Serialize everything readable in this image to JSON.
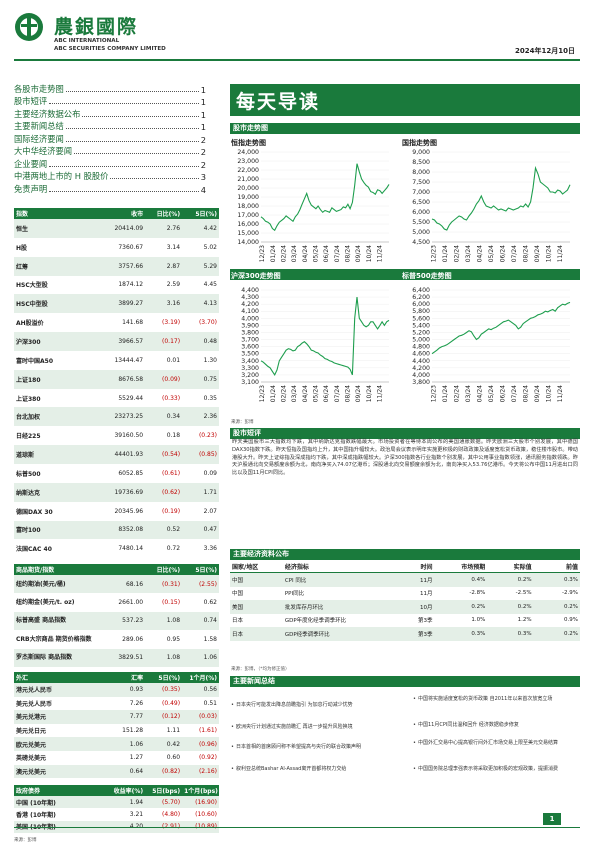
{
  "header": {
    "brand_cn": "農銀國際",
    "brand_en1": "ABC INTERNATIONAL",
    "brand_en2": "ABC SECURITIES COMPANY LIMITED",
    "date": "2024年12月10日"
  },
  "toc": [
    {
      "label": "各股市走势图",
      "page": "1"
    },
    {
      "label": "股市短评",
      "page": "1"
    },
    {
      "label": "主要经济数据公布",
      "page": "1"
    },
    {
      "label": "主要新闻总结",
      "page": "1"
    },
    {
      "label": "国际经济要闻",
      "page": "2"
    },
    {
      "label": "大中华经济要闻",
      "page": "2"
    },
    {
      "label": "企业要闻",
      "page": "2"
    },
    {
      "label": "中港两地上市的 H 股股价",
      "page": "3"
    },
    {
      "label": "免责声明",
      "page": "4"
    }
  ],
  "index_table": {
    "headers": [
      "指数",
      "收市",
      "日比(%)",
      "5日(%)"
    ],
    "rows": [
      [
        "恒生",
        "20414.09",
        "2.76",
        "4.42"
      ],
      [
        "H股",
        "7360.67",
        "3.14",
        "5.02"
      ],
      [
        "红筹",
        "3757.66",
        "2.87",
        "5.29"
      ],
      [
        "HSC大型股",
        "1874.12",
        "2.59",
        "4.45"
      ],
      [
        "HSC中型股",
        "3899.27",
        "3.16",
        "4.13"
      ],
      [
        "AH股溢价",
        "141.68",
        "(3.19)",
        "(3.70)"
      ],
      [
        "沪深300",
        "3966.57",
        "(0.17)",
        "0.48"
      ],
      [
        "富时中国A50",
        "13444.47",
        "0.01",
        "1.30"
      ],
      [
        "上证180",
        "8676.58",
        "(0.09)",
        "0.75"
      ],
      [
        "上证380",
        "5529.44",
        "(0.33)",
        "0.35"
      ],
      [
        "台北加权",
        "23273.25",
        "0.34",
        "2.36"
      ],
      [
        "日经225",
        "39160.50",
        "0.18",
        "(0.23)"
      ],
      [
        "道琼斯",
        "44401.93",
        "(0.54)",
        "(0.85)"
      ],
      [
        "标普500",
        "6052.85",
        "(0.61)",
        "0.09"
      ],
      [
        "纳斯达克",
        "19736.69",
        "(0.62)",
        "1.71"
      ],
      [
        "德国DAX 30",
        "20345.96",
        "(0.19)",
        "2.07"
      ],
      [
        "富时100",
        "8352.08",
        "0.52",
        "0.47"
      ],
      [
        "法国CAC 40",
        "7480.14",
        "0.72",
        "3.36"
      ]
    ]
  },
  "commodity_table": {
    "headers": [
      "商品期货/指数",
      "",
      "日比(%)",
      "5日(%)"
    ],
    "rows": [
      [
        "纽约期油(美元/桶)",
        "68.16",
        "(0.31)",
        "(2.55)"
      ],
      [
        "纽约期金(美元/t. oz)",
        "2661.00",
        "(0.15)",
        "0.62"
      ],
      [
        "标普高盛 商品指数",
        "537.23",
        "1.08",
        "0.74"
      ],
      [
        "CRB大宗商品 期货价格指数",
        "289.06",
        "0.95",
        "1.58"
      ],
      [
        "罗杰斯国际 商品指数",
        "3829.51",
        "1.08",
        "1.06"
      ]
    ]
  },
  "fx_table": {
    "headers": [
      "外汇",
      "汇率",
      "5日(%)",
      "1个月(%)"
    ],
    "rows": [
      [
        "港元兑人民币",
        "0.93",
        "(0.35)",
        "0.56"
      ],
      [
        "美元兑人民币",
        "7.26",
        "(0.49)",
        "0.51"
      ],
      [
        "美元兑港元",
        "7.77",
        "(0.12)",
        "(0.03)"
      ],
      [
        "美元兑日元",
        "151.28",
        "1.11",
        "(1.61)"
      ],
      [
        "欧元兑美元",
        "1.06",
        "0.42",
        "(0.96)"
      ],
      [
        "英磅兑美元",
        "1.27",
        "0.60",
        "(0.92)"
      ],
      [
        "澳元兑美元",
        "0.64",
        "(0.82)",
        "(2.16)"
      ]
    ]
  },
  "bond_table": {
    "headers": [
      "政府债券",
      "收益率(%)",
      "5日(bps)",
      "1个月(bps)"
    ],
    "rows": [
      [
        "中国 (10年期)",
        "1.94",
        "(5.70)",
        "(16.90)"
      ],
      [
        "香港 (10年期)",
        "3.21",
        "(4.80)",
        "(10.60)"
      ],
      [
        "美国 (10年期)",
        "4.20",
        "(2.91)",
        "(10.89)"
      ]
    ]
  },
  "source_left": "来源：彭博",
  "right": {
    "title": "每天导读",
    "charts_section": "股市走势图",
    "charts_source": "来源：彭博",
    "comment_section": "股市短评",
    "comment": "昨天美国股市三大指数均下跌，其中纳斯达克指数跌幅最大。市场投资者在等待本周公布的美国通胀数据。昨天欧洲三大股市个别发展，其中德国DAX30指数下跌。昨天恒指及国指均上升，其中国指升幅较大。政治局会议表示明年实施更积极的财政政策及适度宽松货币政策，稳住楼市股市。带动港股大升。昨天上证综指及深成指均下跌，其中深成指跌幅较大。沪深300指数各行业指数个别发展，其中公用事业指数领涨，通讯服务指数领跌。昨天沪股通北向交易额度余额为北，南向净买入74.07亿港币；深股通北向交易额度余额为北，南向净买入53.76亿港币。今天将公布中国11月进出口同比以及国11月CPI同比。",
    "econ_section": "主要经济资料公布",
    "econ_headers": [
      "国家/地区",
      "经济指标",
      "时间",
      "市场预期",
      "实际值",
      "前值"
    ],
    "econ_rows": [
      [
        "中国",
        "CPI 同比",
        "11月",
        "0.4%",
        "0.2%",
        "0.3%"
      ],
      [
        "中国",
        "PPI同比",
        "11月",
        "-2.8%",
        "-2.5%",
        "-2.9%"
      ],
      [
        "美国",
        "批发库存月环比",
        "10月",
        "0.2%",
        "0.2%",
        "0.2%"
      ],
      [
        "日本",
        "GDP年度化经季调季环比",
        "第3季",
        "1.0%",
        "1.2%",
        "0.9%"
      ],
      [
        "日本",
        "GDP经季调季环比",
        "第3季",
        "0.3%",
        "0.3%",
        "0.2%"
      ]
    ],
    "econ_source": "来源：彭博，（*均为修正值）",
    "news_section": "主要新闻总结",
    "news_left": [
      "日本央行可能发出降息前瞻指引 为加息行动减少忧势",
      "欧洲央行计划通过实施前瞻汇 再进一步提升风险换境",
      "日本首相的首席顾问称不希望提高与央行的联合政策声明",
      "叙利亚总统Bashar Al-Assad离开首都将权力交给"
    ],
    "news_right": [
      "中国将实施适度宽松的货币政策 自2011年以来首次放宽立场",
      "中国11月CPI同比温和回升 经济数据稳步修复",
      "中国外汇交易中心提高银行间外汇市场交易上限至美元交易结算",
      "中国国务院总理李强表示将采取更加积极的宏观政策，提振消费"
    ]
  },
  "page_number": "1",
  "chart_data": [
    {
      "type": "line",
      "title": "恒指走势图",
      "x_labels": [
        "12/23",
        "01/24",
        "02/24",
        "03/24",
        "04/24",
        "05/24",
        "06/24",
        "07/24",
        "08/24",
        "09/24",
        "10/24",
        "11/24"
      ],
      "y_ticks": [
        14000,
        15000,
        16000,
        17000,
        18000,
        19000,
        20000,
        21000,
        22000,
        23000,
        24000
      ],
      "ylim": [
        14000,
        24000
      ],
      "values": [
        16800,
        16600,
        16300,
        16200,
        16000,
        15500,
        15300,
        15800,
        16200,
        16400,
        16600,
        16900,
        16700,
        16500,
        16300,
        16800,
        17100,
        17600,
        18200,
        18800,
        19400,
        18600,
        18100,
        17900,
        17700,
        18000,
        17600,
        17300,
        17500,
        17400,
        17300,
        17800,
        17600,
        17400,
        17500,
        17600,
        17900,
        17800,
        18200,
        17700,
        18400,
        20300,
        22700,
        21800,
        21000,
        20600,
        20300,
        20100,
        19600,
        19500,
        19300,
        19800,
        19700,
        19400,
        19700,
        20000,
        20400
      ]
    },
    {
      "type": "line",
      "title": "国指走势图",
      "x_labels": [
        "12/23",
        "01/24",
        "02/24",
        "03/24",
        "04/24",
        "05/24",
        "06/24",
        "07/24",
        "08/24",
        "09/24",
        "10/24",
        "11/24"
      ],
      "y_ticks": [
        4500,
        5000,
        5500,
        6000,
        6500,
        7000,
        7500,
        8000,
        8500,
        9000
      ],
      "ylim": [
        4500,
        9000
      ],
      "values": [
        5650,
        5600,
        5450,
        5400,
        5300,
        5150,
        5100,
        5350,
        5500,
        5600,
        5700,
        5800,
        5750,
        5650,
        5600,
        5800,
        5950,
        6150,
        6400,
        6550,
        6800,
        6500,
        6300,
        6250,
        6200,
        6300,
        6200,
        6100,
        6150,
        6100,
        6050,
        6200,
        6150,
        6100,
        6150,
        6200,
        6300,
        6250,
        6400,
        6250,
        6500,
        7200,
        8200,
        7900,
        7500,
        7400,
        7300,
        7200,
        7000,
        7000,
        6950,
        7100,
        7050,
        6900,
        7000,
        7100,
        7360
      ]
    },
    {
      "type": "line",
      "title": "沪深300走势图",
      "x_labels": [
        "12/23",
        "01/24",
        "02/24",
        "03/24",
        "04/24",
        "05/24",
        "06/24",
        "07/24",
        "08/24",
        "09/24",
        "10/24",
        "11/24"
      ],
      "y_ticks": [
        3100,
        3200,
        3300,
        3400,
        3500,
        3600,
        3700,
        3800,
        3900,
        4000,
        4100,
        4200,
        4300,
        4400
      ],
      "ylim": [
        3100,
        4400
      ],
      "values": [
        3400,
        3380,
        3350,
        3320,
        3300,
        3250,
        3200,
        3270,
        3400,
        3450,
        3500,
        3550,
        3570,
        3560,
        3540,
        3550,
        3600,
        3620,
        3650,
        3670,
        3640,
        3600,
        3550,
        3540,
        3520,
        3510,
        3480,
        3460,
        3430,
        3420,
        3400,
        3390,
        3370,
        3360,
        3350,
        3340,
        3330,
        3320,
        3310,
        3280,
        3200,
        4000,
        4300,
        4000,
        3950,
        3900,
        3880,
        3900,
        3950,
        3950,
        3900,
        3850,
        3900,
        3950,
        3900,
        3950,
        3970
      ]
    },
    {
      "type": "line",
      "title": "标普500走势图",
      "x_labels": [
        "12/23",
        "01/24",
        "02/24",
        "03/24",
        "04/24",
        "05/24",
        "06/24",
        "07/24",
        "08/24",
        "09/24",
        "10/24",
        "11/24"
      ],
      "y_ticks": [
        3800,
        4000,
        4200,
        4400,
        4600,
        4800,
        5000,
        5200,
        5400,
        5600,
        5800,
        6000,
        6200,
        6400
      ],
      "ylim": [
        3800,
        6400
      ],
      "values": [
        4600,
        4650,
        4700,
        4760,
        4800,
        4820,
        4850,
        4900,
        4950,
        5000,
        5050,
        5100,
        5120,
        5150,
        5200,
        5250,
        5220,
        5100,
        5000,
        5050,
        5150,
        5200,
        5250,
        5300,
        5280,
        5320,
        5350,
        5400,
        5450,
        5500,
        5520,
        5550,
        5500,
        5450,
        5400,
        5300,
        5350,
        5450,
        5500,
        5550,
        5600,
        5620,
        5650,
        5700,
        5720,
        5750,
        5800,
        5780,
        5820,
        5850,
        5800,
        5900,
        5950,
        6000,
        5980,
        6020,
        6050
      ]
    }
  ]
}
